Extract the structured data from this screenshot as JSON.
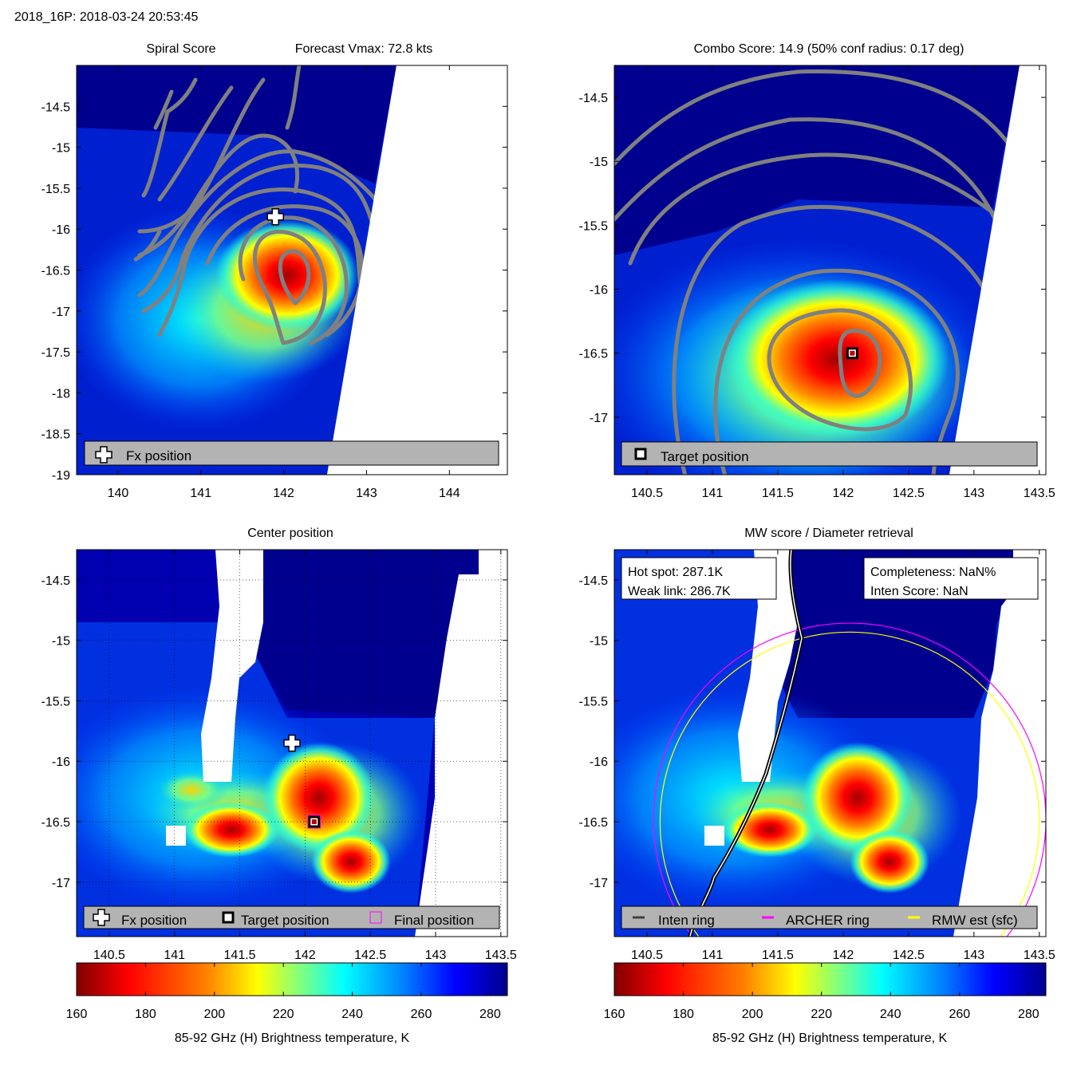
{
  "header": "2018_16P: 2018-03-24 20:53:45",
  "colors": {
    "jet": [
      "#00008f",
      "#0000ff",
      "#0080ff",
      "#00ffff",
      "#80ff80",
      "#ffff00",
      "#ff8000",
      "#ff0000",
      "#800000"
    ],
    "grey_track": "#808080",
    "legend_bg": "#b3b3b3",
    "archer_ring": "#ff00ff",
    "rmw_ring": "#ffff00"
  },
  "chart_data": [
    {
      "id": "spiral",
      "type": "heatmap",
      "title_left": "Spiral Score",
      "title_right": "Forecast Vmax: 72.8 kts",
      "xlim": [
        139.5,
        144.7
      ],
      "ylim": [
        -19,
        -14
      ],
      "xticks": [
        140,
        141,
        142,
        143,
        144
      ],
      "yticks": [
        -14.5,
        -15,
        -15.5,
        -16,
        -16.5,
        -17,
        -17.5,
        -18,
        -18.5,
        -19
      ],
      "grid": false,
      "markers": [
        {
          "kind": "fx",
          "lon": 141.9,
          "lat": -15.85
        }
      ],
      "hot_spots": [
        {
          "lon": 142.1,
          "lat": -16.6,
          "value": 1
        }
      ],
      "legend": [
        "Fx position"
      ]
    },
    {
      "id": "combo",
      "type": "heatmap",
      "title": "Combo Score: 14.9  (50% conf radius: 0.17 deg)",
      "xlim": [
        140.25,
        143.55
      ],
      "ylim": [
        -17.45,
        -14.25
      ],
      "xticks": [
        140.5,
        141,
        141.5,
        142,
        142.5,
        143,
        143.5
      ],
      "yticks": [
        -14.5,
        -15,
        -15.5,
        -16,
        -16.5,
        -17
      ],
      "grid": false,
      "markers": [
        {
          "kind": "target",
          "lon": 142.07,
          "lat": -16.5
        }
      ],
      "hot_spots": [
        {
          "lon": 142.07,
          "lat": -16.5,
          "value": 1
        }
      ],
      "legend": [
        "Target position"
      ]
    },
    {
      "id": "center",
      "type": "heatmap",
      "title": "Center position",
      "xlim": [
        140.25,
        143.55
      ],
      "ylim": [
        -17.45,
        -14.25
      ],
      "xticks": [
        140.5,
        141,
        141.5,
        142,
        142.5,
        143,
        143.5
      ],
      "yticks": [
        -14.5,
        -15,
        -15.5,
        -16,
        -16.5,
        -17
      ],
      "grid": true,
      "markers": [
        {
          "kind": "fx",
          "lon": 141.9,
          "lat": -15.85
        },
        {
          "kind": "target",
          "lon": 142.07,
          "lat": -16.5
        },
        {
          "kind": "final",
          "lon": 142.07,
          "lat": -16.5
        }
      ],
      "hot_spots": [
        {
          "lon": 141.4,
          "lat": -16.6,
          "value": 170
        },
        {
          "lon": 142.05,
          "lat": -16.35,
          "value": 165
        }
      ],
      "legend": [
        "Fx position",
        "Target position",
        "Final position"
      ],
      "colorbar": {
        "range": [
          160,
          285
        ],
        "ticks": [
          160,
          180,
          200,
          220,
          240,
          260,
          280
        ],
        "label": "85-92 GHz (H) Brightness temperature, K"
      }
    },
    {
      "id": "mw",
      "type": "heatmap",
      "title": "MW score / Diameter retrieval",
      "xlim": [
        140.25,
        143.55
      ],
      "ylim": [
        -17.45,
        -14.25
      ],
      "xticks": [
        140.5,
        141,
        141.5,
        142,
        142.5,
        143,
        143.5
      ],
      "yticks": [
        -14.5,
        -15,
        -15.5,
        -16,
        -16.5,
        -17
      ],
      "grid": false,
      "rings": [
        {
          "kind": "archer",
          "lon": 142.05,
          "lat": -16.48,
          "radius_deg": 1.5
        },
        {
          "kind": "rmw",
          "lon": 142.05,
          "lat": -16.5,
          "radius_deg": 1.45
        }
      ],
      "hot_spots": [
        {
          "lon": 141.4,
          "lat": -16.6,
          "value": 170
        },
        {
          "lon": 142.05,
          "lat": -16.35,
          "value": 165
        }
      ],
      "info_left": [
        "Hot spot: 287.1K",
        "Weak link: 286.7K"
      ],
      "info_right": [
        "Completeness: NaN%",
        "Inten Score: NaN"
      ],
      "legend": [
        "Inten ring",
        "ARCHER ring",
        "RMW est (sfc)"
      ],
      "colorbar": {
        "range": [
          160,
          285
        ],
        "ticks": [
          160,
          180,
          200,
          220,
          240,
          260,
          280
        ],
        "label": "85-92 GHz (H) Brightness temperature, K"
      }
    }
  ]
}
